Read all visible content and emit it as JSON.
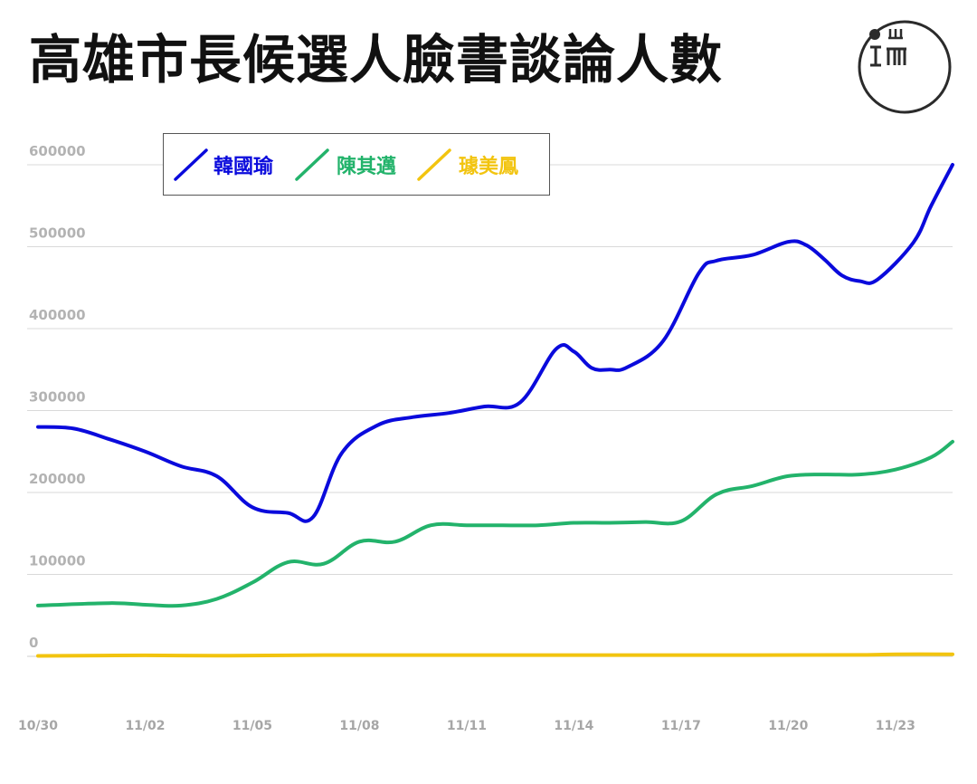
{
  "title": "高雄市長候選人臉書談論人數",
  "logo": {
    "icon": "theinitium-logo-icon",
    "glyph_left": "I",
    "glyph_right": "ш"
  },
  "chart_data": {
    "type": "line",
    "title": "高雄市長候選人臉書談論人數",
    "xlabel": "",
    "ylabel": "",
    "ylim": [
      0,
      600000
    ],
    "y_ticks": [
      "0",
      "100000",
      "200000",
      "300000",
      "400000",
      "500000",
      "600000"
    ],
    "x_ticks": [
      "10/30",
      "11/02",
      "11/05",
      "11/08",
      "11/11",
      "11/14",
      "11/17",
      "11/20",
      "11/23"
    ],
    "grid": true,
    "legend": "top-left",
    "series": [
      {
        "name": "韓國瑜",
        "color": "#0a0adc",
        "points": [
          [
            0,
            280000
          ],
          [
            1,
            278000
          ],
          [
            2,
            265000
          ],
          [
            3,
            250000
          ],
          [
            4,
            232000
          ],
          [
            5,
            220000
          ],
          [
            6,
            182000
          ],
          [
            7,
            175000
          ],
          [
            7.7,
            170000
          ],
          [
            8.5,
            248000
          ],
          [
            9.5,
            282000
          ],
          [
            10.5,
            292000
          ],
          [
            11.5,
            297000
          ],
          [
            12.5,
            305000
          ],
          [
            13.5,
            310000
          ],
          [
            14.5,
            375000
          ],
          [
            15,
            372000
          ],
          [
            15.5,
            352000
          ],
          [
            16,
            350000
          ],
          [
            16.5,
            353000
          ],
          [
            17.5,
            385000
          ],
          [
            18.5,
            468000
          ],
          [
            19,
            483000
          ],
          [
            20,
            490000
          ],
          [
            21,
            506000
          ],
          [
            21.5,
            502000
          ],
          [
            22,
            485000
          ],
          [
            22.5,
            465000
          ],
          [
            23,
            458000
          ],
          [
            23.5,
            460000
          ],
          [
            24.5,
            505000
          ],
          [
            25,
            550000
          ],
          [
            25.6,
            600000
          ]
        ]
      },
      {
        "name": "陳其邁",
        "color": "#23b36b",
        "points": [
          [
            0,
            62000
          ],
          [
            2,
            65000
          ],
          [
            3,
            63000
          ],
          [
            4,
            62000
          ],
          [
            5,
            70000
          ],
          [
            6,
            90000
          ],
          [
            7,
            115000
          ],
          [
            8,
            113000
          ],
          [
            9,
            140000
          ],
          [
            10,
            140000
          ],
          [
            11,
            160000
          ],
          [
            12,
            160000
          ],
          [
            13,
            160000
          ],
          [
            14,
            160000
          ],
          [
            15,
            163000
          ],
          [
            16,
            163000
          ],
          [
            17,
            164000
          ],
          [
            18,
            165000
          ],
          [
            19,
            198000
          ],
          [
            20,
            208000
          ],
          [
            21,
            220000
          ],
          [
            22,
            222000
          ],
          [
            23,
            222000
          ],
          [
            24,
            228000
          ],
          [
            25,
            243000
          ],
          [
            25.6,
            262000
          ]
        ]
      },
      {
        "name": "璩美鳳",
        "color": "#f2c40f",
        "points": [
          [
            0,
            500
          ],
          [
            3,
            1200
          ],
          [
            5,
            800
          ],
          [
            8,
            1500
          ],
          [
            12,
            1500
          ],
          [
            16,
            1500
          ],
          [
            20,
            1500
          ],
          [
            23,
            1800
          ],
          [
            24,
            2500
          ],
          [
            25.6,
            2500
          ]
        ]
      }
    ]
  }
}
